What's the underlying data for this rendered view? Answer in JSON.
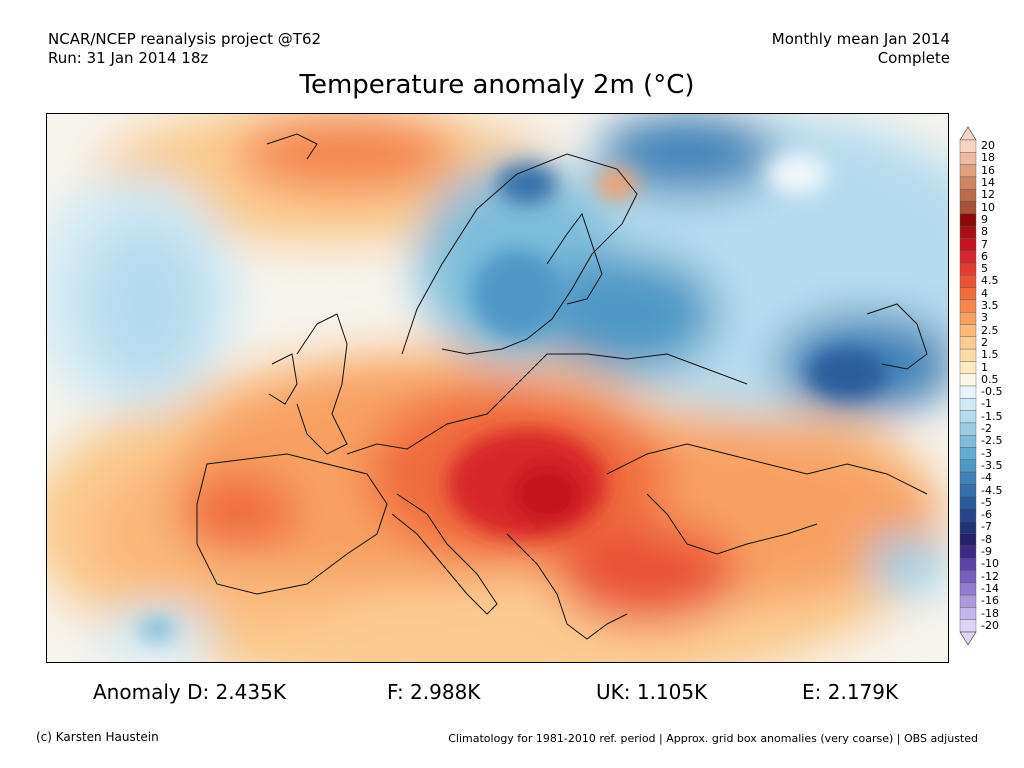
{
  "header": {
    "line1_left": "NCAR/NCEP reanalysis project @T62",
    "line2_left": "Run: 31 Jan 2014 18z",
    "line1_right": "Monthly mean Jan 2014",
    "line2_right": "Complete"
  },
  "title": "Temperature anomaly 2m (°C)",
  "colorbar": {
    "labels": [
      "20",
      "18",
      "16",
      "14",
      "12",
      "10",
      "9",
      "8",
      "7",
      "6",
      "5",
      "4.5",
      "4",
      "3.5",
      "3",
      "2.5",
      "2",
      "1.5",
      "1",
      "0.5",
      "-0.5",
      "-1",
      "-1.5",
      "-2",
      "-2.5",
      "-3",
      "-3.5",
      "-4",
      "-4.5",
      "-5",
      "-6",
      "-7",
      "-8",
      "-9",
      "-10",
      "-12",
      "-14",
      "-16",
      "-18",
      "-20"
    ],
    "colors": [
      "#f7d4c0",
      "#eebba0",
      "#e0a07e",
      "#cf8462",
      "#bb6a4a",
      "#a65338",
      "#8e0a0a",
      "#a50f15",
      "#c4161c",
      "#d7262a",
      "#e23b30",
      "#ea5336",
      "#f06c3e",
      "#f5874e",
      "#f8a062",
      "#fab879",
      "#fbcb8f",
      "#fcdca6",
      "#fcebbf",
      "#fbf6e4",
      "#e8f4fa",
      "#d0e9f4",
      "#b5dcee",
      "#9acde5",
      "#7ebddc",
      "#63acd2",
      "#4d98c5",
      "#3f82b8",
      "#3470aa",
      "#2b5b9b",
      "#26468b",
      "#21347a",
      "#261f6a",
      "#3d2a86",
      "#5a44a6",
      "#7660bf",
      "#917cd2",
      "#ab99e0",
      "#c5b6ec",
      "#ddd4f6"
    ]
  },
  "stats": {
    "d": "Anomaly D: 2.435K",
    "f": "F: 2.988K",
    "uk": "UK: 1.105K",
    "e": "E: 2.179K"
  },
  "footer": {
    "left": "(c) Karsten Haustein",
    "right": "Climatology for 1981-2010 ref. period | Approx. grid box anomalies (very coarse) | OBS adjusted"
  }
}
